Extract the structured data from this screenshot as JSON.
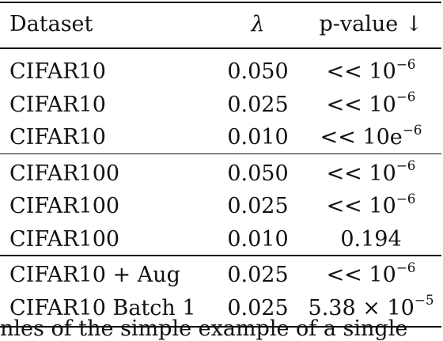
{
  "table": {
    "headers": {
      "dataset": "Dataset",
      "lambda": "λ",
      "pvalue": "p-value ↓"
    },
    "groups": [
      [
        {
          "dataset": "CIFAR10",
          "lambda": "0.050",
          "p_base": "<< 10",
          "p_sup": "−6"
        },
        {
          "dataset": "CIFAR10",
          "lambda": "0.025",
          "p_base": "<< 10",
          "p_sup": "−6"
        },
        {
          "dataset": "CIFAR10",
          "lambda": "0.010",
          "p_base": "<< 10e",
          "p_sup": "−6"
        }
      ],
      [
        {
          "dataset": "CIFAR100",
          "lambda": "0.050",
          "p_base": "<< 10",
          "p_sup": "−6"
        },
        {
          "dataset": "CIFAR100",
          "lambda": "0.025",
          "p_base": "<< 10",
          "p_sup": "−6"
        },
        {
          "dataset": "CIFAR100",
          "lambda": "0.010",
          "p_base": "0.194",
          "p_sup": ""
        }
      ],
      [
        {
          "dataset": "CIFAR10 + Aug",
          "lambda": "0.025",
          "p_base": "<< 10",
          "p_sup": "−6"
        },
        {
          "dataset": "CIFAR10 Batch 1",
          "lambda": "0.025",
          "p_base": "5.38 × 10",
          "p_sup": "−5"
        }
      ]
    ]
  },
  "footer_text": "nles of the simple example of a single"
}
